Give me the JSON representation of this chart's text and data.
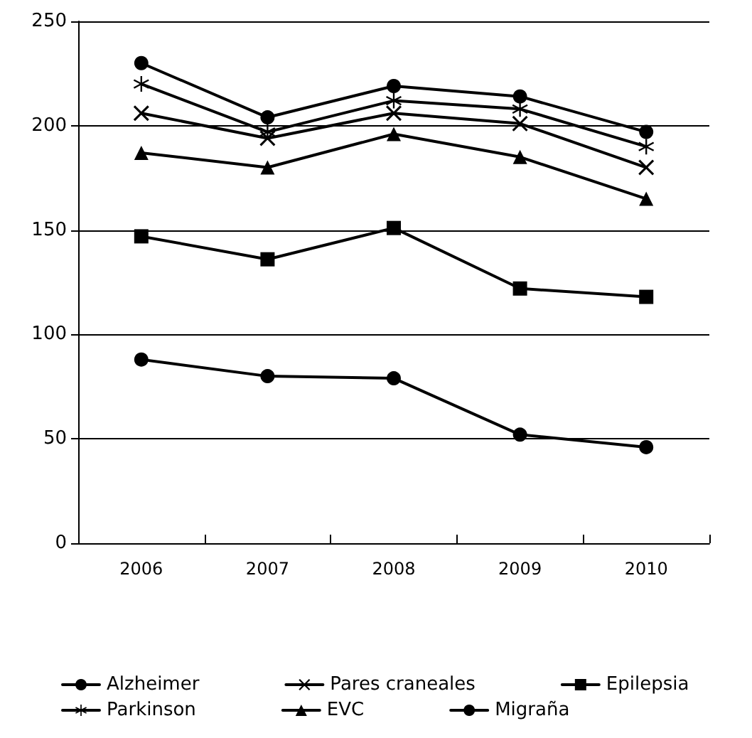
{
  "chart_data": {
    "type": "line",
    "categories": [
      "2006",
      "2007",
      "2008",
      "2009",
      "2010"
    ],
    "series": [
      {
        "name": "Alzheimer",
        "color": "#000000",
        "marker": "circle",
        "values": [
          230,
          204,
          219,
          214,
          197
        ]
      },
      {
        "name": "Pares craneales",
        "color": "#000000",
        "marker": "cross",
        "values": [
          206,
          194,
          206,
          201,
          180
        ]
      },
      {
        "name": "Epilepsia",
        "color": "#000000",
        "marker": "square",
        "values": [
          147,
          136,
          151,
          122,
          118
        ]
      },
      {
        "name": "Parkinson",
        "color": "#000000",
        "marker": "star",
        "values": [
          220,
          197,
          212,
          208,
          190
        ]
      },
      {
        "name": "EVC",
        "color": "#000000",
        "marker": "triangle",
        "values": [
          187,
          180,
          196,
          185,
          165
        ]
      },
      {
        "name": "Migraña",
        "color": "#000000",
        "marker": "circle",
        "values": [
          88,
          80,
          79,
          52,
          46
        ]
      }
    ],
    "ylim": [
      0,
      250
    ],
    "yticks": [
      0,
      50,
      100,
      150,
      200,
      250
    ],
    "grid": "y",
    "legend": "bottom",
    "line_style": "solid"
  }
}
